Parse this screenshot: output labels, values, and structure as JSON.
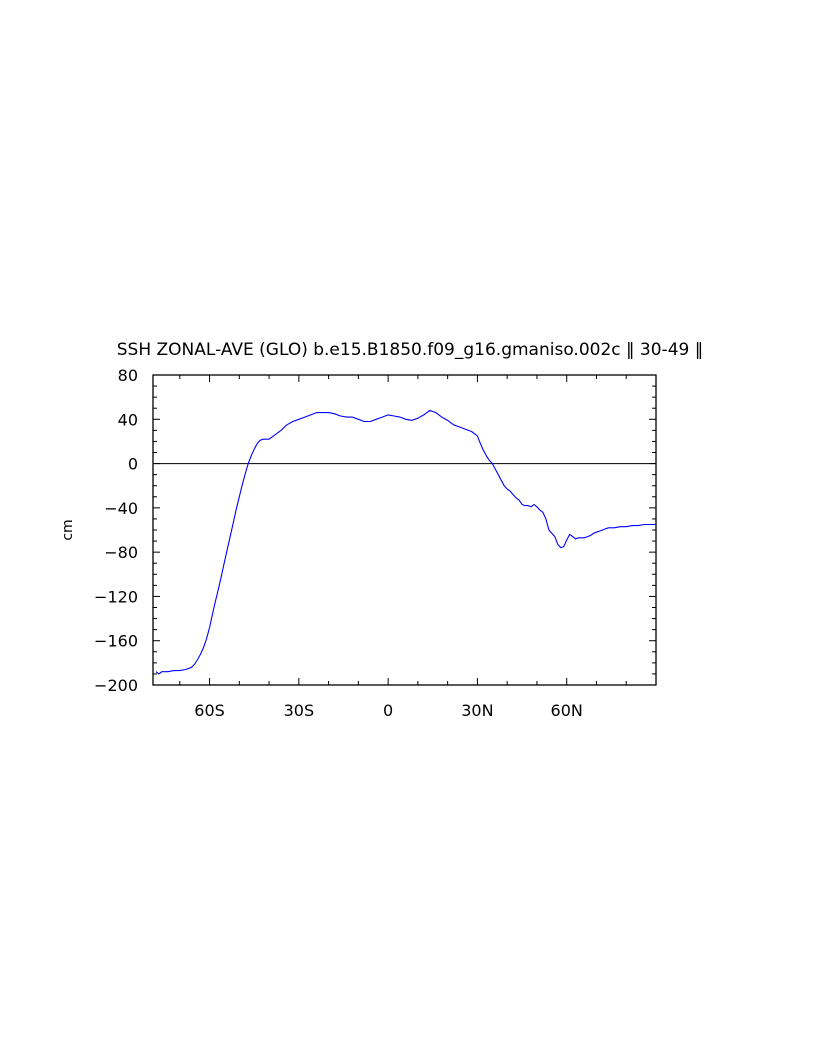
{
  "chart_data": {
    "type": "line",
    "title": "SSH ZONAL-AVE (GLO) b.e15.B1850.f09_g16.gmaniso.002c ‖ 30-49 ‖",
    "xlabel": "",
    "ylabel": "cm",
    "xlim": [
      -79,
      90
    ],
    "ylim": [
      -200,
      80
    ],
    "x_ticks": [
      {
        "value": -60,
        "label": "60S"
      },
      {
        "value": -30,
        "label": "30S"
      },
      {
        "value": 0,
        "label": "0"
      },
      {
        "value": 30,
        "label": "30N"
      },
      {
        "value": 60,
        "label": "60N"
      }
    ],
    "y_ticks": [
      {
        "value": 80,
        "label": "80"
      },
      {
        "value": 40,
        "label": "40"
      },
      {
        "value": 0,
        "label": "0"
      },
      {
        "value": -40,
        "label": "−40"
      },
      {
        "value": -80,
        "label": "−80"
      },
      {
        "value": -120,
        "label": "−120"
      },
      {
        "value": -160,
        "label": "−160"
      },
      {
        "value": -200,
        "label": "−200"
      }
    ],
    "reference_line": {
      "y": 0
    },
    "grid": false,
    "series": [
      {
        "color": "#0000ff",
        "x": [
          -78,
          -77,
          -76,
          -74,
          -72,
          -70,
          -68,
          -66,
          -65,
          -64,
          -63,
          -62,
          -61,
          -60,
          -59,
          -58,
          -57,
          -56,
          -55,
          -54,
          -53,
          -52,
          -51,
          -50,
          -49,
          -48,
          -47,
          -46,
          -45,
          -44,
          -43,
          -42,
          -41,
          -40,
          -38,
          -36,
          -34,
          -32,
          -30,
          -28,
          -26,
          -24,
          -22,
          -20,
          -18,
          -16,
          -14,
          -12,
          -10,
          -8,
          -6,
          -4,
          -2,
          0,
          2,
          4,
          6,
          8,
          10,
          12,
          14,
          16,
          18,
          20,
          22,
          24,
          26,
          28,
          30,
          31,
          32,
          33,
          34,
          35,
          36,
          37,
          38,
          39,
          40,
          41,
          42,
          43,
          44,
          45,
          46,
          47,
          48,
          49,
          50,
          51,
          52,
          53,
          54,
          55,
          56,
          57,
          58,
          59,
          60,
          61,
          62,
          63,
          64,
          65,
          66,
          67,
          68,
          69,
          70,
          71,
          72,
          73,
          74,
          76,
          78,
          80,
          82,
          84,
          86,
          88,
          90
        ],
        "y": [
          -188,
          -190,
          -188,
          -188,
          -187,
          -187,
          -186,
          -184,
          -181,
          -177,
          -172,
          -166,
          -158,
          -148,
          -136,
          -124,
          -113,
          -101,
          -89,
          -77,
          -65,
          -53,
          -41,
          -30,
          -19,
          -9,
          0,
          7,
          13,
          18,
          21,
          22,
          22,
          22,
          26,
          30,
          35,
          38,
          40,
          42,
          44,
          46,
          46,
          46,
          45,
          43,
          42,
          42,
          40,
          38,
          38,
          40,
          42,
          44,
          43,
          42,
          40,
          39,
          41,
          44,
          48,
          46,
          42,
          39,
          35,
          33,
          31,
          29,
          25,
          18,
          12,
          7,
          3,
          0,
          -5,
          -10,
          -15,
          -20,
          -23,
          -25,
          -28,
          -31,
          -33,
          -37,
          -38,
          -38,
          -39,
          -37,
          -39,
          -42,
          -44,
          -50,
          -60,
          -63,
          -66,
          -73,
          -76,
          -75,
          -69,
          -64,
          -66,
          -68,
          -67,
          -67,
          -67,
          -66,
          -65,
          -63,
          -62,
          -61,
          -60,
          -59,
          -58,
          -58,
          -57,
          -57,
          -56,
          -56,
          -55,
          -55,
          -55
        ]
      }
    ]
  }
}
